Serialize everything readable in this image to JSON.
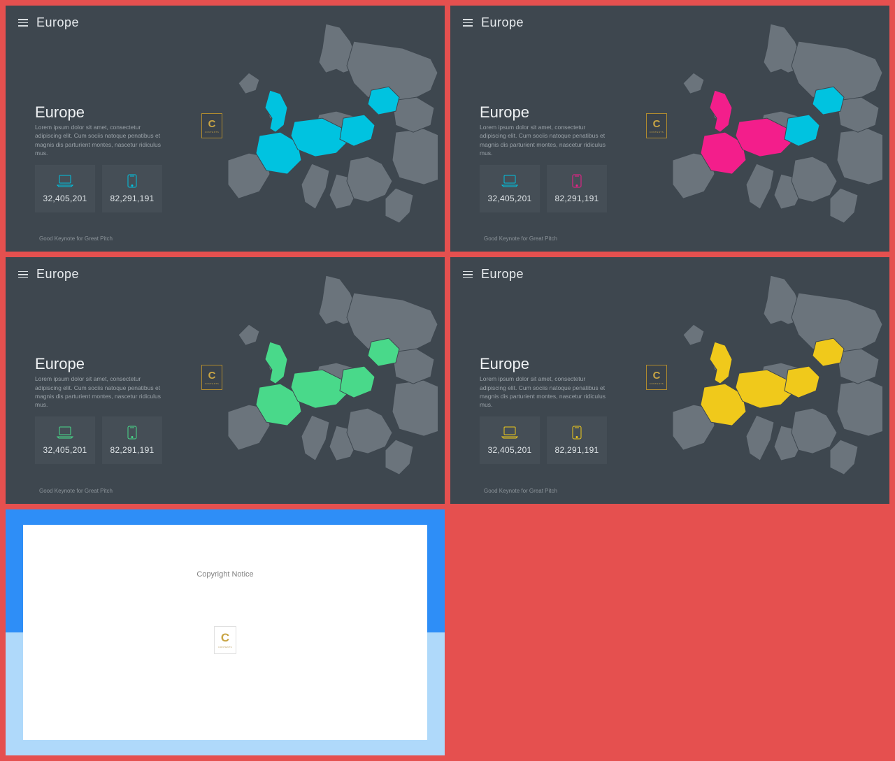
{
  "page_bg": "#e5504f",
  "dark_bg": "#3e474f",
  "card_bg": "#454e56",
  "base_map_fill": "#6b747c",
  "base_map_stroke": "#3e474f",
  "logo": {
    "letter": "C",
    "sub": "CONTENTS",
    "border": "#b08b2f",
    "text": "#c9a545"
  },
  "common": {
    "top_title": "Europe",
    "section_title": "Europe",
    "section_text": "Lorem ipsum dolor sit amet, consectetur adipiscing elit. Cum sociis natoque penatibus et magnis dis parturient montes, nascetur ridiculus mus.",
    "footer": "Good Keynote for Great Pitch",
    "stat1_value": "32,405,201",
    "stat2_value": "82,291,191"
  },
  "slides": [
    {
      "accent": {
        "primary": "#00c3e0",
        "secondary": "#00c3e0"
      },
      "hl1": "#00c3e0",
      "hl2": "#00c3e0"
    },
    {
      "accent": {
        "primary": "#00c3e0",
        "secondary": "#f31e8b"
      },
      "hl1": "#f31e8b",
      "hl2": "#00c3e0"
    },
    {
      "accent": {
        "primary": "#49d98a",
        "secondary": "#49d98a"
      },
      "hl1": "#49d98a",
      "hl2": "#49d98a"
    },
    {
      "accent": {
        "primary": "#f0c91b",
        "secondary": "#f0c91b"
      },
      "hl1": "#f0c91b",
      "hl2": "#f0c91b"
    }
  ],
  "map": {
    "base_shapes": [
      "M150,0 l20,5 l15,20 l10,25 l-5,15 l-15,5 l-10,-5 l-15,5 l-10,-15 l5,-20 l5,-35 z",
      "M190,25 l70,10 l40,15 l10,20 l-10,25 l-20,10 l-30,5 l-40,-5 l-20,-20 l-10,-25 l10,-35 z",
      "M40,70 l15,10 l-5,15 l-15,5 l-10,-15 l15,-15 z",
      "M75,110 l15,10 l-5,20 l-15,-5 l-5,-15 l10,-10 z",
      "M10,195 l30,-10 l25,5 l5,25 l-15,25 l-30,10 l-15,-20 l0,-35 z",
      "M140,130 l25,-5 l35,10 l-5,25 l-20,15 l-25,-5 l-15,-20 l5,-20 z",
      "M165,215 l20,5 l10,20 l-10,20 l-20,5 l-10,-20 l10,-30 z",
      "M130,200 l25,10 l-5,25 l-15,30 l-15,-10 l-5,-25 l15,-30 z",
      "M185,195 l25,-5 l20,10 l15,25 l-10,20 l-25,10 l-20,-5 l-10,-25 l5,-30 z",
      "M250,155 l40,-5 l35,15 l10,25 l-15,30 l-30,10 l-35,-10 l-10,-25 l5,-40 z",
      "M250,235 l25,10 l-5,25 l-15,15 l-20,-10 l0,-25 l15,-15 z",
      "M245,110 l35,-5 l25,15 l-5,25 l-25,10 l-25,-10 l-5,-35 z"
    ],
    "hl1_shapes": [
      "M70,95 l15,5 l10,20 l-5,25 l-12,10 l-8,-5 l3,-15 l-10,-15 l7,-25 z",
      "M55,160 l30,-5 l25,15 l5,25 l-20,20 l-30,-5 l-15,-25 l5,-25 z",
      "M105,140 l40,-5 l30,15 l5,20 l-15,15 l-30,5 l-25,-10 l-10,-20 l5,-20 z"
    ],
    "hl2_shapes": [
      "M175,135 l30,-5 l15,15 l-5,20 l-25,10 l-20,-10 l5,-30 z",
      "M215,95 l25,-5 l15,15 l-5,20 l-25,5 l-15,-15 l5,-20 z"
    ]
  },
  "light": {
    "bg_top": "#2e8ef7",
    "bg_bottom": "#afd9fa",
    "paper_bg": "#ffffff",
    "title": "Copyright Notice"
  }
}
